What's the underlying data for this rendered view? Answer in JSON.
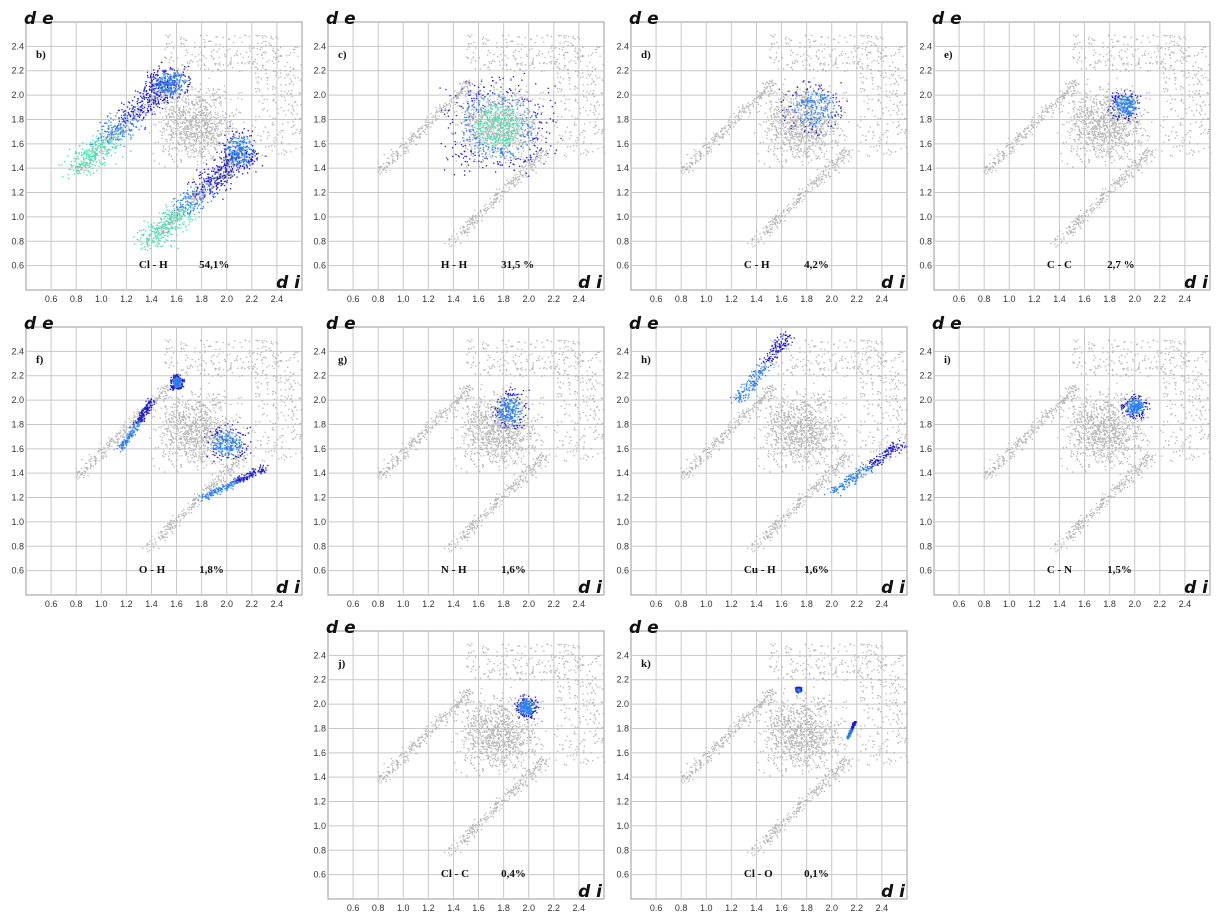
{
  "colors": {
    "grid": "#c8c8c8",
    "background_cloud": "#b4b4b4",
    "highlight_low": "#1a1acd",
    "highlight_mid": "#2a7df0",
    "highlight_high": "#3de0b0"
  },
  "chart_data": [
    {
      "type": "scatter",
      "label": "b)",
      "contact": "Cl - H",
      "percent": "54,1%",
      "xaxis_label": "d i",
      "yaxis_label": "d e",
      "xlim": [
        0.4,
        2.6
      ],
      "ylim": [
        0.4,
        2.6
      ],
      "xticks": [
        "0.6",
        "0.8",
        "1.0",
        "1.2",
        "1.4",
        "1.6",
        "1.8",
        "2.0",
        "2.2",
        "2.4"
      ],
      "yticks": [
        "0.6",
        "0.8",
        "1.0",
        "1.2",
        "1.4",
        "1.6",
        "1.8",
        "2.0",
        "2.2",
        "2.4"
      ],
      "highlight": [
        {
          "shape": "spike",
          "x": [
            0.8,
            1.55
          ],
          "y": [
            1.38,
            2.15
          ],
          "w": 0.22,
          "dense": true
        },
        {
          "shape": "spike",
          "x": [
            1.38,
            2.15
          ],
          "y": [
            0.8,
            1.55
          ],
          "w": 0.22,
          "dense": true
        },
        {
          "shape": "blob",
          "x": 1.55,
          "y": 2.1,
          "rx": 0.25,
          "ry": 0.18
        },
        {
          "shape": "blob",
          "x": 2.1,
          "y": 1.55,
          "rx": 0.18,
          "ry": 0.25
        }
      ]
    },
    {
      "type": "scatter",
      "label": "c)",
      "contact": "H - H",
      "percent": "31,5 %",
      "xaxis_label": "d i",
      "yaxis_label": "d e",
      "xlim": [
        0.4,
        2.6
      ],
      "ylim": [
        0.4,
        2.6
      ],
      "xticks": [
        "0.6",
        "0.8",
        "1.0",
        "1.2",
        "1.4",
        "1.6",
        "1.8",
        "2.0",
        "2.2",
        "2.4"
      ],
      "yticks": [
        "0.6",
        "0.8",
        "1.0",
        "1.2",
        "1.4",
        "1.6",
        "1.8",
        "2.0",
        "2.2",
        "2.4"
      ],
      "highlight": [
        {
          "shape": "blob",
          "x": 1.75,
          "y": 1.75,
          "rx": 0.55,
          "ry": 0.5,
          "dense": true
        }
      ]
    },
    {
      "type": "scatter",
      "label": "d)",
      "contact": "C - H",
      "percent": "4,2%",
      "xaxis_label": "d i",
      "yaxis_label": "d e",
      "xlim": [
        0.4,
        2.6
      ],
      "ylim": [
        0.4,
        2.6
      ],
      "xticks": [
        "0.6",
        "0.8",
        "1.0",
        "1.2",
        "1.4",
        "1.6",
        "1.8",
        "2.0",
        "2.2",
        "2.4"
      ],
      "yticks": [
        "0.6",
        "0.8",
        "1.0",
        "1.2",
        "1.4",
        "1.6",
        "1.8",
        "2.0",
        "2.2",
        "2.4"
      ],
      "highlight": [
        {
          "shape": "blob",
          "x": 1.85,
          "y": 1.9,
          "rx": 0.32,
          "ry": 0.28
        }
      ]
    },
    {
      "type": "scatter",
      "label": "e)",
      "contact": "C - C",
      "percent": "2,7 %",
      "xaxis_label": "d i",
      "yaxis_label": "d e",
      "xlim": [
        0.4,
        2.6
      ],
      "ylim": [
        0.4,
        2.6
      ],
      "xticks": [
        "0.6",
        "0.8",
        "1.0",
        "1.2",
        "1.4",
        "1.6",
        "1.8",
        "2.0",
        "2.2",
        "2.4"
      ],
      "yticks": [
        "0.6",
        "0.8",
        "1.0",
        "1.2",
        "1.4",
        "1.6",
        "1.8",
        "2.0",
        "2.2",
        "2.4"
      ],
      "highlight": [
        {
          "shape": "blob",
          "x": 1.92,
          "y": 1.92,
          "rx": 0.16,
          "ry": 0.15
        }
      ]
    },
    {
      "type": "scatter",
      "label": "f)",
      "contact": "O - H",
      "percent": "1,8%",
      "xaxis_label": "d i",
      "yaxis_label": "d e",
      "xlim": [
        0.4,
        2.6
      ],
      "ylim": [
        0.4,
        2.6
      ],
      "xticks": [
        "0.6",
        "0.8",
        "1.0",
        "1.2",
        "1.4",
        "1.6",
        "1.8",
        "2.0",
        "2.2",
        "2.4"
      ],
      "yticks": [
        "0.6",
        "0.8",
        "1.0",
        "1.2",
        "1.4",
        "1.6",
        "1.8",
        "2.0",
        "2.2",
        "2.4"
      ],
      "highlight": [
        {
          "shape": "spike",
          "x": [
            1.15,
            1.4
          ],
          "y": [
            1.6,
            2.0
          ],
          "w": 0.05
        },
        {
          "shape": "spike",
          "x": [
            1.8,
            2.3
          ],
          "y": [
            1.2,
            1.45
          ],
          "w": 0.06
        },
        {
          "shape": "blob",
          "x": 1.6,
          "y": 2.15,
          "rx": 0.07,
          "ry": 0.08
        },
        {
          "shape": "blob",
          "x": 2.0,
          "y": 1.65,
          "rx": 0.22,
          "ry": 0.2
        }
      ]
    },
    {
      "type": "scatter",
      "label": "g)",
      "contact": "N - H",
      "percent": "1,6%",
      "xaxis_label": "d i",
      "yaxis_label": "d e",
      "xlim": [
        0.4,
        2.6
      ],
      "ylim": [
        0.4,
        2.6
      ],
      "xticks": [
        "0.6",
        "0.8",
        "1.0",
        "1.2",
        "1.4",
        "1.6",
        "1.8",
        "2.0",
        "2.2",
        "2.4"
      ],
      "yticks": [
        "0.6",
        "0.8",
        "1.0",
        "1.2",
        "1.4",
        "1.6",
        "1.8",
        "2.0",
        "2.2",
        "2.4"
      ],
      "highlight": [
        {
          "shape": "blob",
          "x": 1.85,
          "y": 1.92,
          "rx": 0.17,
          "ry": 0.22
        }
      ]
    },
    {
      "type": "scatter",
      "label": "h)",
      "contact": "Cu - H",
      "percent": "1,6%",
      "xaxis_label": "d i",
      "yaxis_label": "d e",
      "xlim": [
        0.4,
        2.6
      ],
      "ylim": [
        0.4,
        2.6
      ],
      "xticks": [
        "0.6",
        "0.8",
        "1.0",
        "1.2",
        "1.4",
        "1.6",
        "1.8",
        "2.0",
        "2.2",
        "2.4"
      ],
      "yticks": [
        "0.6",
        "0.8",
        "1.0",
        "1.2",
        "1.4",
        "1.6",
        "1.8",
        "2.0",
        "2.2",
        "2.4"
      ],
      "highlight": [
        {
          "shape": "spike",
          "x": [
            1.25,
            1.65
          ],
          "y": [
            2.0,
            2.55
          ],
          "w": 0.09
        },
        {
          "shape": "spike",
          "x": [
            2.0,
            2.55
          ],
          "y": [
            1.25,
            1.65
          ],
          "w": 0.09
        }
      ]
    },
    {
      "type": "scatter",
      "label": "i)",
      "contact": "C - N",
      "percent": "1,5%",
      "xaxis_label": "d i",
      "yaxis_label": "d e",
      "xlim": [
        0.4,
        2.6
      ],
      "ylim": [
        0.4,
        2.6
      ],
      "xticks": [
        "0.6",
        "0.8",
        "1.0",
        "1.2",
        "1.4",
        "1.6",
        "1.8",
        "2.0",
        "2.2",
        "2.4"
      ],
      "yticks": [
        "0.6",
        "0.8",
        "1.0",
        "1.2",
        "1.4",
        "1.6",
        "1.8",
        "2.0",
        "2.2",
        "2.4"
      ],
      "highlight": [
        {
          "shape": "blob",
          "x": 2.0,
          "y": 1.95,
          "rx": 0.13,
          "ry": 0.12
        }
      ]
    },
    {
      "type": "scatter",
      "label": "j)",
      "contact": "Cl - C",
      "percent": "0,4%",
      "xaxis_label": "d i",
      "yaxis_label": "d e",
      "xlim": [
        0.4,
        2.6
      ],
      "ylim": [
        0.4,
        2.6
      ],
      "xticks": [
        "0.6",
        "0.8",
        "1.0",
        "1.2",
        "1.4",
        "1.6",
        "1.8",
        "2.0",
        "2.2",
        "2.4"
      ],
      "yticks": [
        "0.6",
        "0.8",
        "1.0",
        "1.2",
        "1.4",
        "1.6",
        "1.8",
        "2.0",
        "2.2",
        "2.4"
      ],
      "highlight": [
        {
          "shape": "blob",
          "x": 1.98,
          "y": 1.98,
          "rx": 0.11,
          "ry": 0.12
        }
      ]
    },
    {
      "type": "scatter",
      "label": "k)",
      "contact": "Cl - O",
      "percent": "0,1%",
      "xaxis_label": "d i",
      "yaxis_label": "d e",
      "xlim": [
        0.4,
        2.6
      ],
      "ylim": [
        0.4,
        2.6
      ],
      "xticks": [
        "0.6",
        "0.8",
        "1.0",
        "1.2",
        "1.4",
        "1.6",
        "1.8",
        "2.0",
        "2.2",
        "2.4"
      ],
      "yticks": [
        "0.6",
        "0.8",
        "1.0",
        "1.2",
        "1.4",
        "1.6",
        "1.8",
        "2.0",
        "2.2",
        "2.4"
      ],
      "highlight": [
        {
          "shape": "blob",
          "x": 1.73,
          "y": 2.12,
          "rx": 0.03,
          "ry": 0.03
        },
        {
          "shape": "spike",
          "x": [
            2.12,
            2.18
          ],
          "y": [
            1.72,
            1.86
          ],
          "w": 0.015
        }
      ]
    }
  ]
}
